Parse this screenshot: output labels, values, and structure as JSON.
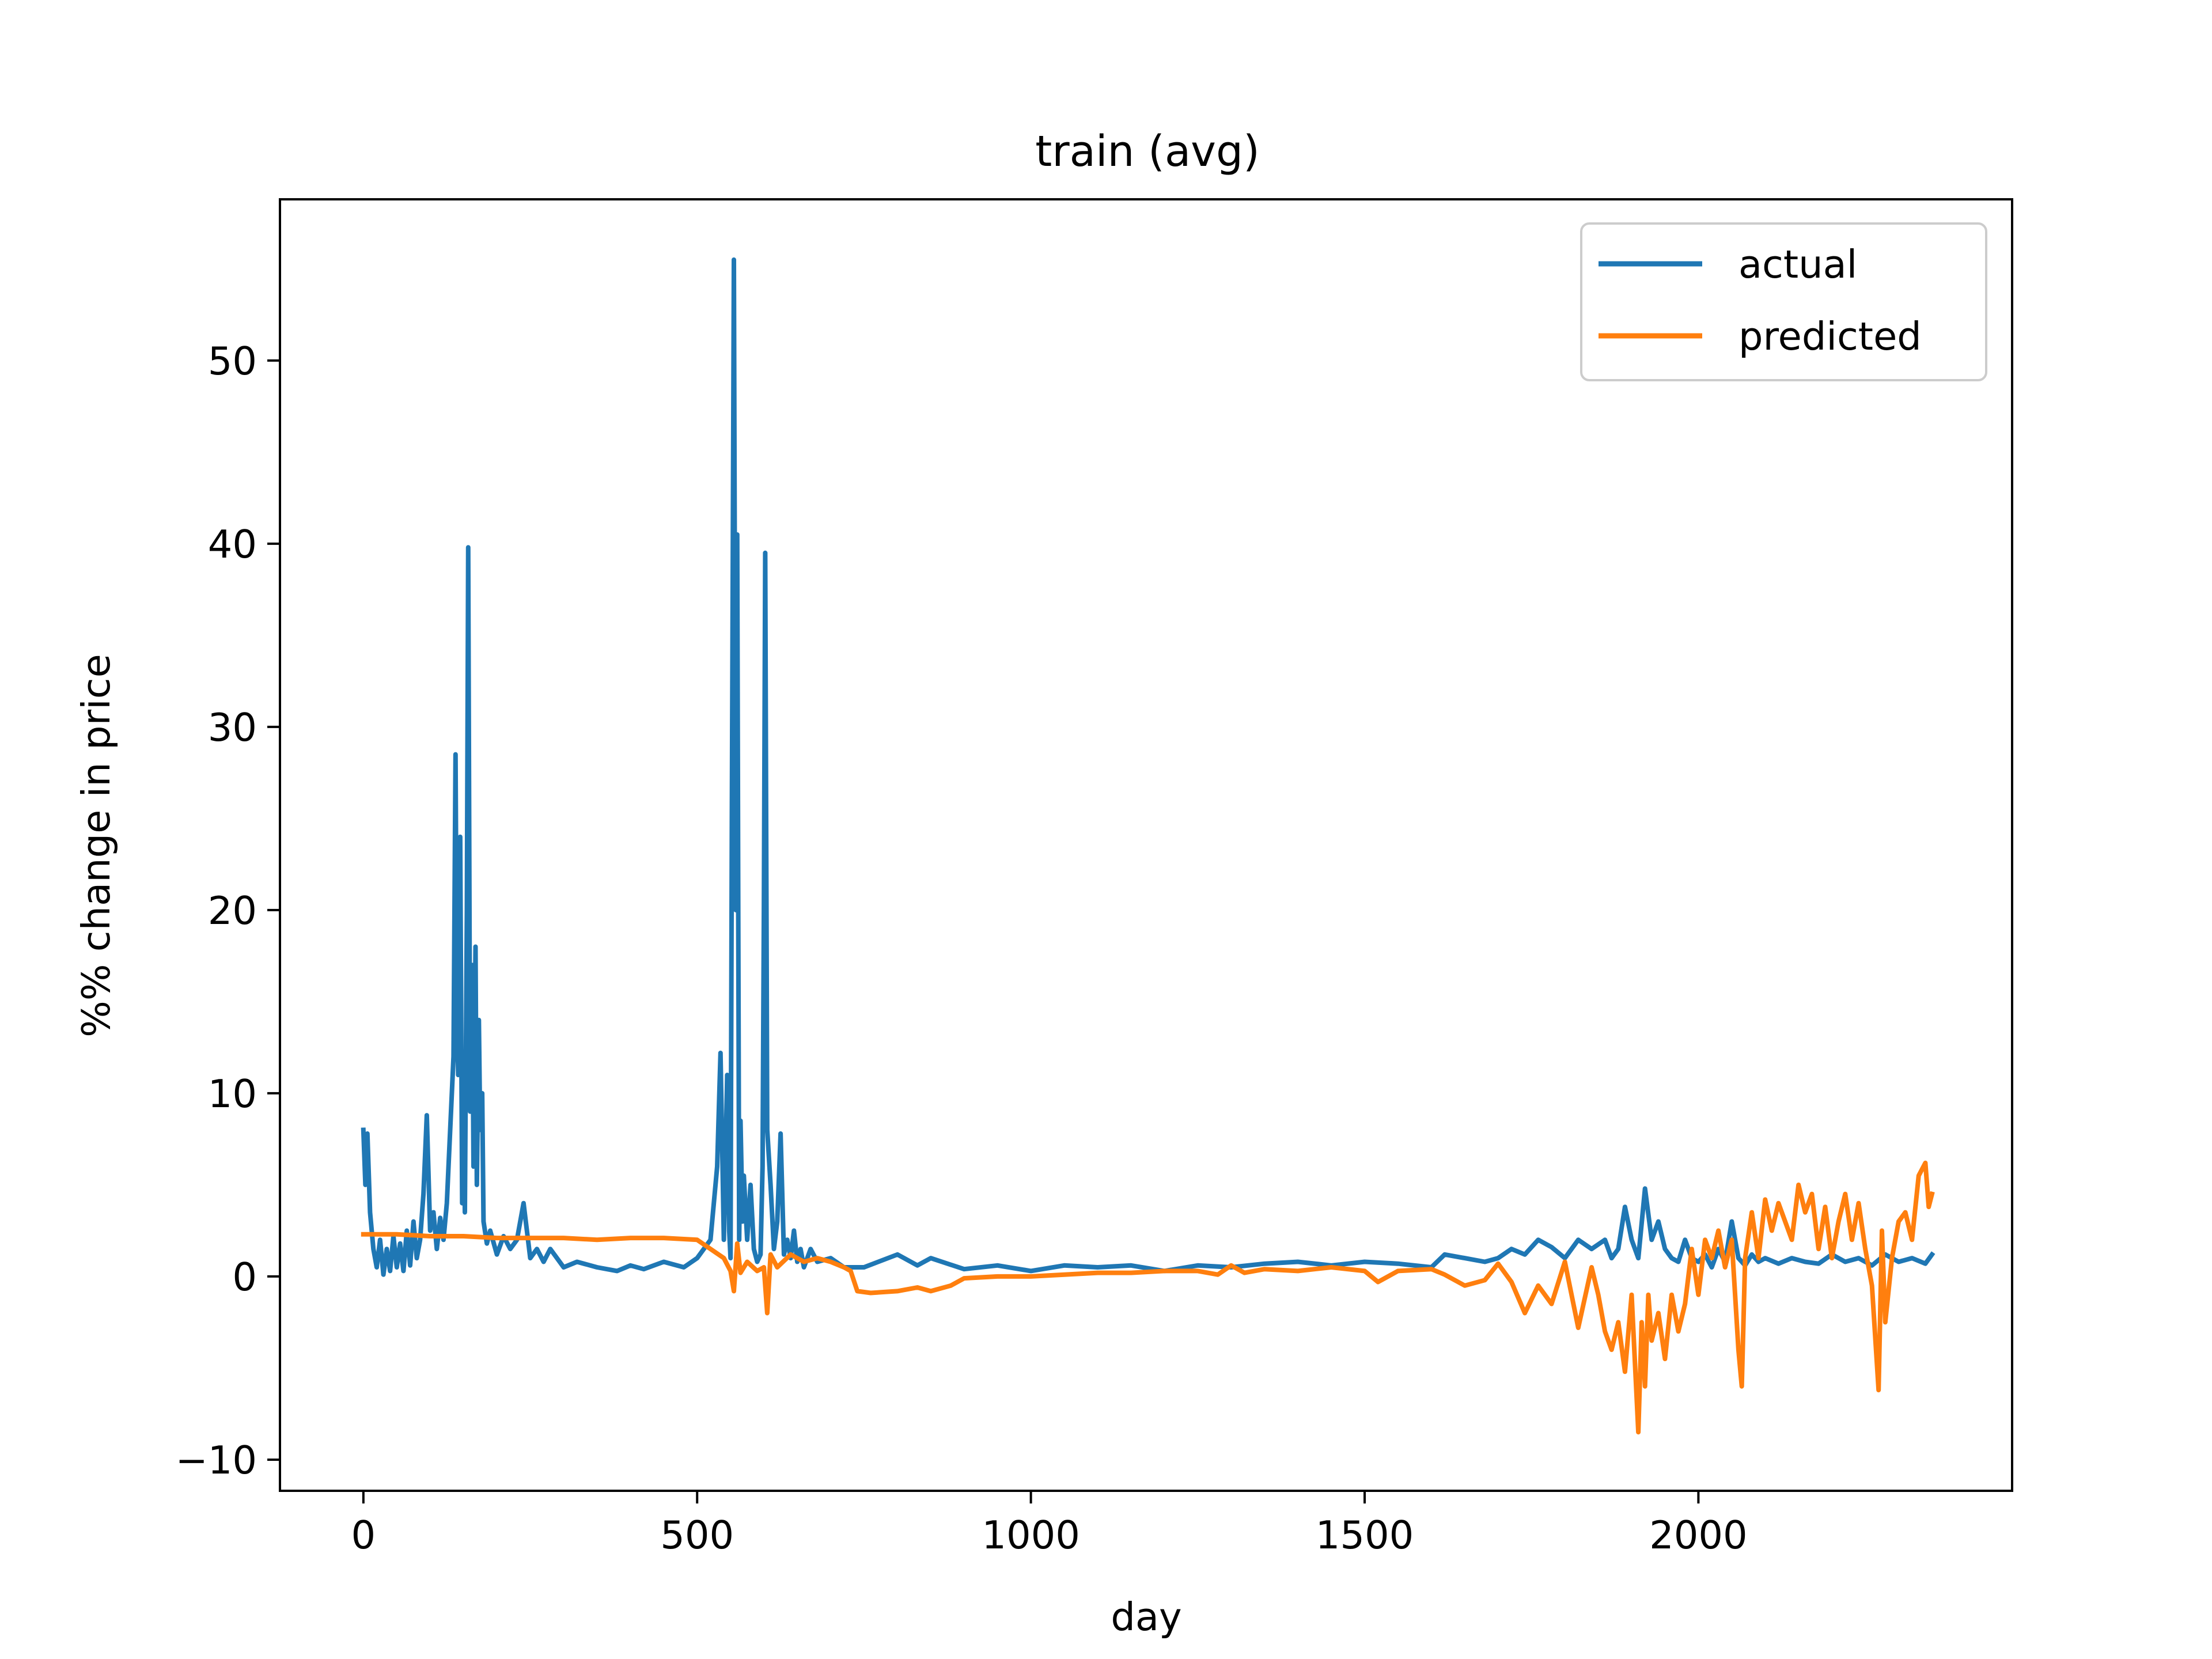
{
  "chart_data": {
    "type": "line",
    "title": "train (avg)",
    "xlabel": "day",
    "ylabel": "%% change in price",
    "xlim": [
      -125,
      2470
    ],
    "ylim": [
      -11.7,
      58.8
    ],
    "xticks": [
      0,
      500,
      1000,
      1500,
      2000
    ],
    "yticks": [
      -10,
      0,
      10,
      20,
      30,
      40,
      50
    ],
    "xtick_labels": [
      "0",
      "500",
      "1000",
      "1500",
      "2000"
    ],
    "ytick_labels": [
      "−10",
      "0",
      "10",
      "20",
      "30",
      "40",
      "50"
    ],
    "legend": {
      "position": "top-right"
    },
    "grid": false,
    "series": [
      {
        "name": "actual",
        "color": "#1f77b4",
        "x": [
          0,
          3,
          6,
          10,
          15,
          20,
          25,
          30,
          35,
          40,
          45,
          50,
          55,
          60,
          65,
          70,
          75,
          80,
          85,
          90,
          95,
          100,
          105,
          110,
          115,
          120,
          125,
          130,
          135,
          138,
          140,
          142,
          145,
          148,
          150,
          152,
          155,
          157,
          160,
          163,
          165,
          168,
          170,
          173,
          175,
          178,
          180,
          185,
          190,
          200,
          210,
          220,
          230,
          240,
          250,
          260,
          270,
          280,
          300,
          320,
          350,
          380,
          400,
          420,
          450,
          480,
          500,
          520,
          530,
          535,
          540,
          545,
          548,
          550,
          552,
          555,
          558,
          560,
          563,
          565,
          568,
          570,
          575,
          580,
          585,
          590,
          595,
          598,
          600,
          602,
          605,
          610,
          615,
          620,
          625,
          630,
          635,
          640,
          645,
          650,
          655,
          660,
          670,
          680,
          700,
          720,
          750,
          800,
          830,
          850,
          900,
          950,
          1000,
          1050,
          1100,
          1150,
          1200,
          1250,
          1300,
          1350,
          1400,
          1450,
          1500,
          1550,
          1600,
          1620,
          1650,
          1680,
          1700,
          1720,
          1740,
          1760,
          1780,
          1800,
          1820,
          1840,
          1860,
          1870,
          1880,
          1890,
          1900,
          1910,
          1920,
          1930,
          1940,
          1950,
          1960,
          1970,
          1980,
          1990,
          2000,
          2010,
          2020,
          2030,
          2040,
          2050,
          2060,
          2070,
          2080,
          2090,
          2100,
          2120,
          2140,
          2160,
          2180,
          2200,
          2220,
          2240,
          2260,
          2280,
          2300,
          2320,
          2340,
          2350
        ],
        "y": [
          8,
          5,
          7.8,
          3.5,
          1.5,
          0.5,
          2,
          0.1,
          1.5,
          0.3,
          2.2,
          0.5,
          1.8,
          0.3,
          2.5,
          0.6,
          3,
          1,
          2,
          4.5,
          8.8,
          2.5,
          3.5,
          1.5,
          3.2,
          2,
          4,
          8,
          12,
          28.5,
          15,
          11,
          24,
          4,
          10,
          3.5,
          20,
          39.8,
          9,
          17,
          6,
          18,
          5,
          14,
          8,
          10,
          3,
          1.8,
          2.5,
          1.2,
          2.2,
          1.5,
          2,
          4,
          1,
          1.5,
          0.8,
          1.5,
          0.5,
          0.8,
          0.5,
          0.3,
          0.6,
          0.4,
          0.8,
          0.5,
          1,
          2,
          6,
          12.2,
          2,
          11,
          2.5,
          1,
          25,
          55.5,
          20,
          40.5,
          2,
          8.5,
          3,
          5.5,
          2,
          5,
          1.5,
          0.8,
          1.2,
          6,
          20,
          39.5,
          8,
          5,
          1.5,
          3,
          7.8,
          1.2,
          2,
          1,
          2.5,
          0.8,
          1.5,
          0.5,
          1.5,
          0.8,
          1,
          0.5,
          0.5,
          1.2,
          0.6,
          1,
          0.4,
          0.6,
          0.3,
          0.6,
          0.5,
          0.6,
          0.3,
          0.6,
          0.5,
          0.7,
          0.8,
          0.6,
          0.8,
          0.7,
          0.5,
          1.2,
          1,
          0.8,
          1,
          1.5,
          1.2,
          2,
          1.6,
          1,
          2,
          1.5,
          2,
          1,
          1.5,
          3.8,
          2,
          1,
          4.8,
          2,
          3,
          1.5,
          1,
          0.8,
          2,
          1,
          0.8,
          1.2,
          0.5,
          1.5,
          0.8,
          3,
          1,
          0.6,
          1.2,
          0.8,
          1,
          0.7,
          1,
          0.8,
          0.7,
          1.2,
          0.8,
          1,
          0.6,
          1.2,
          0.8,
          1,
          0.7,
          1.2
        ]
      },
      {
        "name": "predicted",
        "color": "#ff7f0e",
        "x": [
          0,
          50,
          100,
          150,
          200,
          250,
          300,
          350,
          400,
          450,
          500,
          520,
          540,
          550,
          555,
          560,
          565,
          575,
          590,
          600,
          605,
          610,
          620,
          640,
          660,
          680,
          700,
          720,
          730,
          740,
          760,
          800,
          830,
          850,
          880,
          900,
          950,
          1000,
          1050,
          1100,
          1150,
          1200,
          1250,
          1280,
          1300,
          1320,
          1350,
          1400,
          1450,
          1500,
          1520,
          1550,
          1600,
          1620,
          1650,
          1680,
          1700,
          1720,
          1740,
          1760,
          1780,
          1800,
          1820,
          1840,
          1850,
          1860,
          1870,
          1880,
          1890,
          1900,
          1910,
          1915,
          1920,
          1925,
          1930,
          1940,
          1950,
          1960,
          1970,
          1980,
          1990,
          2000,
          2010,
          2020,
          2030,
          2040,
          2050,
          2060,
          2065,
          2070,
          2080,
          2090,
          2100,
          2110,
          2120,
          2130,
          2140,
          2150,
          2160,
          2170,
          2180,
          2190,
          2200,
          2210,
          2220,
          2230,
          2240,
          2250,
          2260,
          2270,
          2275,
          2280,
          2290,
          2300,
          2310,
          2320,
          2330,
          2340,
          2345,
          2350
        ],
        "y": [
          2.3,
          2.3,
          2.2,
          2.2,
          2.1,
          2.1,
          2.1,
          2.0,
          2.1,
          2.1,
          2.0,
          1.5,
          1.0,
          0.3,
          -0.8,
          1.8,
          0.2,
          0.8,
          0.3,
          0.5,
          -2.0,
          1.2,
          0.5,
          1.2,
          0.8,
          1.0,
          0.8,
          0.5,
          0.3,
          -0.8,
          -0.9,
          -0.8,
          -0.6,
          -0.8,
          -0.5,
          -0.1,
          0.0,
          0.0,
          0.1,
          0.2,
          0.2,
          0.3,
          0.3,
          0.1,
          0.6,
          0.2,
          0.4,
          0.3,
          0.5,
          0.3,
          -0.3,
          0.3,
          0.4,
          0.1,
          -0.5,
          -0.2,
          0.7,
          -0.3,
          -2.0,
          -0.5,
          -1.5,
          0.8,
          -2.8,
          0.5,
          -1.0,
          -3.0,
          -4.0,
          -2.5,
          -5.2,
          -1.0,
          -8.5,
          -2.5,
          -6.0,
          -1.0,
          -3.5,
          -2.0,
          -4.5,
          -1.0,
          -3.0,
          -1.5,
          1.5,
          -1.0,
          2.0,
          1.0,
          2.5,
          0.5,
          2.0,
          -4.0,
          -6.0,
          1.0,
          3.5,
          1.0,
          4.2,
          2.5,
          4.0,
          3.0,
          2.0,
          5.0,
          3.5,
          4.5,
          1.5,
          3.8,
          1.0,
          3.0,
          4.5,
          2.0,
          4.0,
          1.5,
          -0.5,
          -6.2,
          2.5,
          -2.5,
          1.0,
          3.0,
          3.5,
          2.0,
          5.5,
          6.2,
          3.8,
          4.5
        ]
      }
    ]
  }
}
